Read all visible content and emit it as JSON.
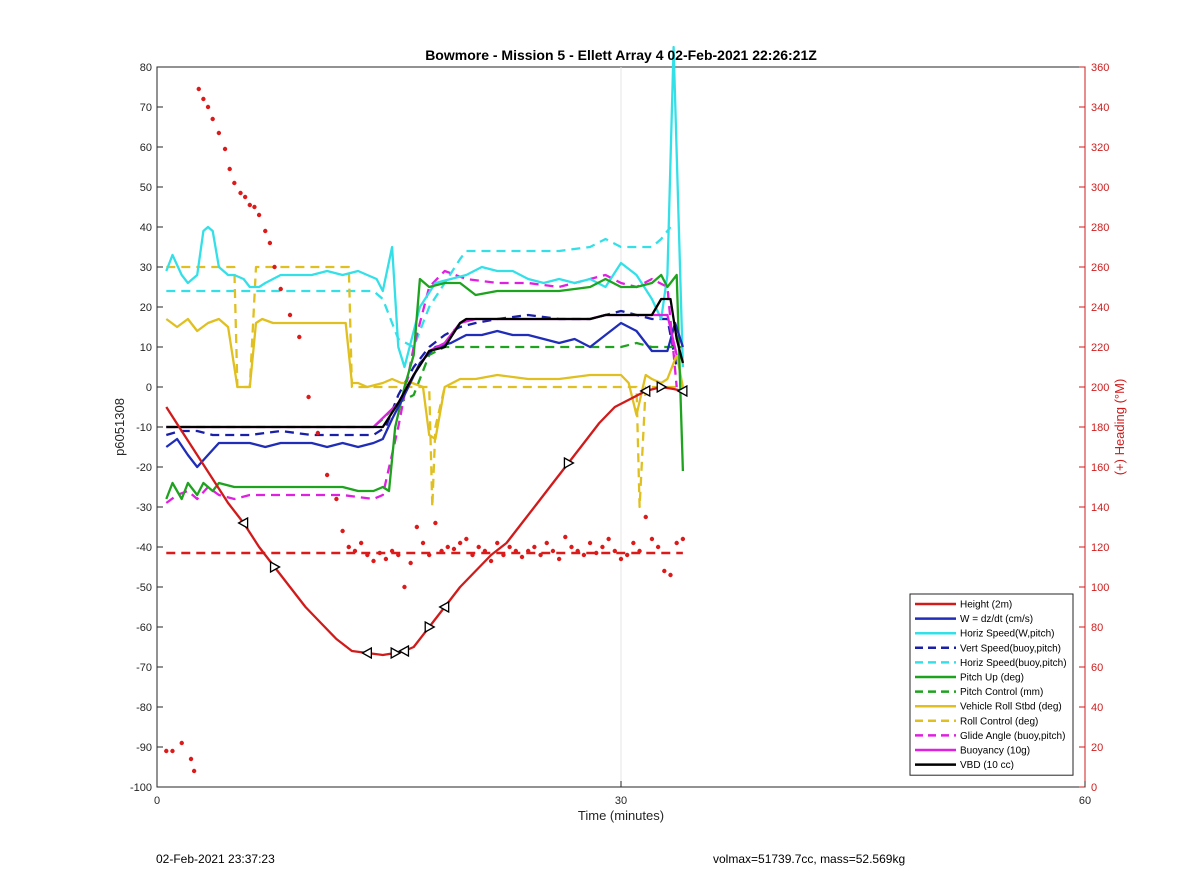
{
  "chart_data": {
    "type": "line",
    "title": "Bowmore - Mission 5 - Ellett Array 4 02-Feb-2021 22:26:21Z",
    "xlabel": "Time (minutes)",
    "ylabel": "p6051308",
    "y2label": "(+) Heading (°M)",
    "xlim": [
      0,
      60
    ],
    "ylim": [
      -100,
      80
    ],
    "y2lim": [
      0,
      360
    ],
    "xticks": [
      0,
      30,
      60
    ],
    "yticks": [
      -100,
      -90,
      -80,
      -70,
      -60,
      -50,
      -40,
      -30,
      -20,
      -10,
      0,
      10,
      20,
      30,
      40,
      50,
      60,
      70,
      80
    ],
    "y2ticks": [
      0,
      20,
      40,
      60,
      80,
      100,
      120,
      140,
      160,
      180,
      200,
      220,
      240,
      260,
      280,
      300,
      320,
      340,
      360
    ],
    "grid": "x-only",
    "legend_position": "bottom-right",
    "series": [
      {
        "name": "Height (2m)",
        "color": "#d11b1b",
        "dash": "solid",
        "x": [
          0.6,
          1.6,
          2.6,
          3.6,
          4.6,
          5.6,
          6.6,
          7.6,
          8.6,
          9.6,
          10.6,
          11.6,
          12.6,
          13.6,
          14.6,
          15.4,
          16,
          16.6,
          17.6,
          18.6,
          19.6,
          20.6,
          21.6,
          22.6,
          23.6,
          24.6,
          25.6,
          26.6,
          27.6,
          28.6,
          29.6,
          30.6,
          31.6,
          32.6,
          33.4,
          34
        ],
        "y": [
          -5,
          -11,
          -17,
          -23,
          -29,
          -34,
          -40,
          -45,
          -50,
          -55,
          -59,
          -63,
          -66,
          -66.5,
          -67,
          -66.5,
          -66,
          -65,
          -60,
          -55,
          -50,
          -46,
          -42,
          -39,
          -34,
          -29,
          -24,
          -19,
          -14,
          -9,
          -5,
          -3,
          -1,
          0,
          -0.5,
          -1
        ]
      },
      {
        "name": "W = dz/dt (cm/s)",
        "color": "#1f2db8",
        "dash": "solid",
        "x": [
          0.6,
          1.3,
          2,
          2.6,
          3.3,
          4,
          5,
          6,
          7,
          8,
          9,
          10,
          11,
          12,
          13,
          14,
          14.6,
          15.2,
          16,
          17,
          18,
          19,
          20,
          21,
          22,
          23,
          24,
          25,
          26,
          27,
          28,
          29,
          30,
          31,
          32,
          33,
          33.5,
          34
        ],
        "y": [
          -15,
          -13,
          -17,
          -20,
          -17,
          -14,
          -14,
          -14,
          -15,
          -14,
          -14,
          -14,
          -15,
          -14,
          -15,
          -14,
          -13,
          -8,
          -2,
          6,
          10,
          11,
          13,
          13,
          14,
          13,
          13,
          12,
          11,
          12,
          10,
          13,
          16,
          14,
          9,
          9,
          16,
          10
        ]
      },
      {
        "name": "Horiz Speed(W,pitch)",
        "color": "#34e0e8",
        "dash": "solid",
        "x": [
          0.6,
          1,
          1.6,
          2,
          2.6,
          3,
          3.3,
          3.6,
          4,
          4.6,
          5,
          5.6,
          6,
          6.6,
          7,
          8,
          9,
          10,
          11,
          12,
          13,
          13.6,
          14.2,
          14.6,
          15.2,
          15.6,
          16,
          17,
          18,
          19,
          20,
          21,
          22,
          23,
          24,
          25,
          26,
          27,
          28,
          29,
          30,
          31,
          32,
          32.6,
          33,
          33.4,
          34
        ],
        "y": [
          29,
          33,
          28,
          26,
          28,
          39,
          40,
          39,
          30,
          28,
          28,
          27,
          25,
          25,
          26,
          28,
          28,
          28,
          29,
          28,
          29,
          28,
          27,
          24,
          35,
          10,
          5,
          20,
          26,
          27,
          28,
          30,
          29,
          29,
          27,
          26,
          27,
          26,
          27,
          25,
          31,
          28,
          22,
          17,
          28,
          85,
          5
        ]
      },
      {
        "name": "Vert Speed(buoy,pitch)",
        "color": "#1a1faa",
        "dash": "dashed",
        "x": [
          0.6,
          1.5,
          2.6,
          3.6,
          5,
          6,
          8,
          10,
          12,
          14,
          14.8,
          15.6,
          16.6,
          17.6,
          18.6,
          19.6,
          20.6,
          22,
          24,
          26,
          28,
          29,
          30,
          31,
          32,
          33,
          33.6
        ],
        "y": [
          -12,
          -11,
          -11,
          -12,
          -12,
          -12,
          -11,
          -12,
          -12,
          -12,
          -10,
          -2,
          5,
          10,
          13,
          15,
          16,
          17,
          18,
          17,
          17,
          18,
          19,
          18,
          17,
          17,
          5
        ]
      },
      {
        "name": "Horiz Speed(buoy,pitch)",
        "color": "#34e0e8",
        "dash": "dashed",
        "x": [
          0.6,
          1.3,
          2.6,
          4,
          6,
          8,
          10,
          12,
          14,
          14.6,
          15.6,
          16.6,
          17.6,
          18.6,
          19.6,
          20,
          22,
          24,
          26,
          28,
          29,
          30,
          31,
          32,
          32.6,
          33.2
        ],
        "y": [
          24,
          24,
          24,
          24,
          24,
          24,
          24,
          24,
          24,
          22,
          12,
          10,
          20,
          26,
          32,
          34,
          34,
          34,
          34,
          35,
          37,
          35,
          35,
          35,
          37,
          40
        ]
      },
      {
        "name": "Pitch Up (deg)",
        "color": "#1ea31e",
        "dash": "solid",
        "x": [
          0.6,
          1,
          1.6,
          2,
          2.6,
          3,
          3.6,
          4,
          5,
          6,
          8,
          10,
          12,
          13,
          14,
          14.6,
          15,
          15.4,
          16,
          16.6,
          17,
          17.6,
          18.6,
          19.6,
          20.6,
          22,
          24,
          26,
          28,
          29,
          30,
          31,
          32,
          32.6,
          33,
          33.6,
          34
        ],
        "y": [
          -28,
          -24,
          -28,
          -24,
          -27,
          -24,
          -26,
          -24,
          -25,
          -25,
          -25,
          -25,
          -25,
          -26,
          -26,
          -25,
          -26,
          -10,
          0,
          8,
          27,
          25,
          26,
          26,
          23,
          24,
          24,
          24,
          25,
          27,
          25,
          25,
          26,
          28,
          25,
          28,
          -21
        ]
      },
      {
        "name": "Pitch Control (mm)",
        "color": "#1ea31e",
        "dash": "dashed",
        "x": [
          0.6,
          5,
          10,
          14,
          14.6,
          15.6,
          16.6,
          17.6,
          18.6,
          20,
          25,
          30,
          31,
          32,
          33,
          34
        ],
        "y": [
          -10,
          -10,
          -10,
          -10,
          -8,
          -4,
          -2,
          8,
          10,
          10,
          10,
          10,
          11,
          10,
          10,
          10
        ]
      },
      {
        "name": "Vehicle Roll Stbd (deg)",
        "color": "#e0c020",
        "dash": "solid",
        "x": [
          0.6,
          1.3,
          2,
          2.6,
          3.3,
          4,
          4.6,
          5.2,
          5.6,
          6,
          6.4,
          6.8,
          7.5,
          8.5,
          9.5,
          10.5,
          11.5,
          12.2,
          12.6,
          13,
          13.6,
          14.6,
          15.2,
          15.8,
          16.5,
          17.2,
          17.6,
          18,
          18.6,
          19.6,
          20.6,
          22,
          24,
          26,
          28,
          29,
          30,
          30.5,
          31,
          31.6,
          32,
          32.6,
          33,
          33.6,
          34
        ],
        "y": [
          17,
          15,
          17,
          14,
          16,
          17,
          15,
          0,
          0,
          0,
          16,
          17,
          16,
          16,
          16,
          16,
          16,
          16,
          1,
          1,
          0,
          1,
          2,
          1,
          1,
          0,
          -12,
          -13,
          0,
          2,
          2,
          3,
          2,
          2,
          3,
          3,
          3,
          1,
          -7,
          3,
          2,
          1,
          2,
          8,
          0
        ]
      },
      {
        "name": "Roll Control (deg)",
        "color": "#e0c020",
        "dash": "dashed",
        "x": [
          0.6,
          4,
          5,
          5.2,
          5.6,
          6,
          6.4,
          8,
          12,
          12.4,
          12.6,
          13,
          14,
          15,
          16,
          17,
          17.6,
          17.8,
          18,
          18.6,
          20,
          25,
          30,
          31,
          31.2,
          31.6,
          32,
          33,
          34
        ],
        "y": [
          30,
          30,
          30,
          0,
          0,
          0,
          30,
          30,
          30,
          30,
          0,
          0,
          0,
          0,
          0,
          0,
          0,
          -30,
          -10,
          0,
          0,
          0,
          0,
          0,
          -30,
          0,
          0,
          0,
          0
        ]
      },
      {
        "name": "Glide Angle (buoy,pitch)",
        "color": "#e020e0",
        "dash": "dashed",
        "x": [
          0.6,
          1.3,
          2,
          2.6,
          3.3,
          4,
          5,
          6,
          8,
          10,
          12,
          14,
          14.6,
          15.6,
          16.6,
          17.6,
          18.6,
          20,
          22,
          24,
          26,
          28,
          29,
          30,
          31,
          32,
          33,
          33.6
        ],
        "y": [
          -29,
          -27,
          -26,
          -28,
          -25,
          -27,
          -28,
          -27,
          -27,
          -27,
          -27,
          -28,
          -27,
          -10,
          10,
          25,
          29,
          27,
          26,
          26,
          25,
          27,
          28,
          26,
          25,
          27,
          25,
          0
        ]
      },
      {
        "name": "Buoyancy (10g)",
        "color": "#e020e0",
        "dash": "solid",
        "x": [
          0.6,
          5,
          10,
          14,
          15.6,
          16.6,
          17.6,
          18.6,
          19.6,
          20.6,
          25,
          28,
          29,
          30,
          32,
          33,
          33.6
        ],
        "y": [
          -10,
          -10,
          -10,
          -10,
          -4,
          3,
          9,
          11,
          16,
          17,
          17,
          17,
          18,
          18,
          18,
          18,
          8
        ]
      },
      {
        "name": "VBD (10 cc)",
        "color": "#000000",
        "dash": "solid",
        "x": [
          0.6,
          5,
          10,
          14,
          14.6,
          15.6,
          16.6,
          17.6,
          18.6,
          19.6,
          20,
          22,
          25,
          28,
          29,
          30,
          32,
          32.6,
          33.2,
          33.6,
          34
        ],
        "y": [
          -10,
          -10,
          -10,
          -10,
          -10,
          -4,
          3,
          9,
          10,
          16,
          17,
          17,
          17,
          17,
          18,
          18,
          18,
          22,
          22,
          12,
          6
        ]
      }
    ],
    "heading_series": {
      "name": "Heading",
      "color": "#dd1a1a",
      "axis": "right",
      "x": [
        0.6,
        1,
        1.6,
        2.2,
        2.4,
        2.7,
        3,
        3.3,
        3.6,
        4,
        4.4,
        4.7,
        5,
        5.4,
        5.7,
        6,
        6.3,
        6.6,
        7,
        7.3,
        7.6,
        8,
        8.6,
        9.2,
        9.8,
        10.4,
        11,
        11.6,
        12,
        12.4,
        12.8,
        13.2,
        13.6,
        14,
        14.4,
        14.8,
        15.2,
        15.6,
        16,
        16.4,
        16.8,
        17.2,
        17.6,
        18,
        18.4,
        18.8,
        19.2,
        19.6,
        20,
        20.4,
        20.8,
        21.2,
        21.6,
        22,
        22.4,
        22.8,
        23.2,
        23.6,
        24,
        24.4,
        24.8,
        25.2,
        25.6,
        26,
        26.4,
        26.8,
        27.2,
        27.6,
        28,
        28.4,
        28.8,
        29.2,
        29.6,
        30,
        30.4,
        30.8,
        31.2,
        31.6,
        32,
        32.4,
        32.8,
        33.2,
        33.6,
        34
      ],
      "y": [
        18,
        18,
        22,
        14,
        8,
        349,
        344,
        340,
        334,
        327,
        319,
        309,
        302,
        297,
        295,
        291,
        290,
        286,
        278,
        272,
        260,
        249,
        236,
        225,
        195,
        177,
        156,
        144,
        128,
        120,
        118,
        122,
        116,
        113,
        117,
        114,
        118,
        116,
        100,
        112,
        130,
        122,
        116,
        132,
        118,
        120,
        119,
        122,
        124,
        116,
        120,
        118,
        113,
        122,
        116,
        120,
        118,
        115,
        118,
        120,
        116,
        122,
        118,
        114,
        125,
        120,
        118,
        116,
        122,
        117,
        120,
        124,
        118,
        114,
        116,
        122,
        118,
        135,
        124,
        120,
        108,
        106,
        122,
        124
      ]
    },
    "heading_reference": {
      "y2": 117,
      "color": "#dd1a1a",
      "dash": "dashed"
    }
  },
  "footer": {
    "left": "02-Feb-2021 23:37:23",
    "right": "volmax=51739.7cc, mass=52.569kg"
  }
}
